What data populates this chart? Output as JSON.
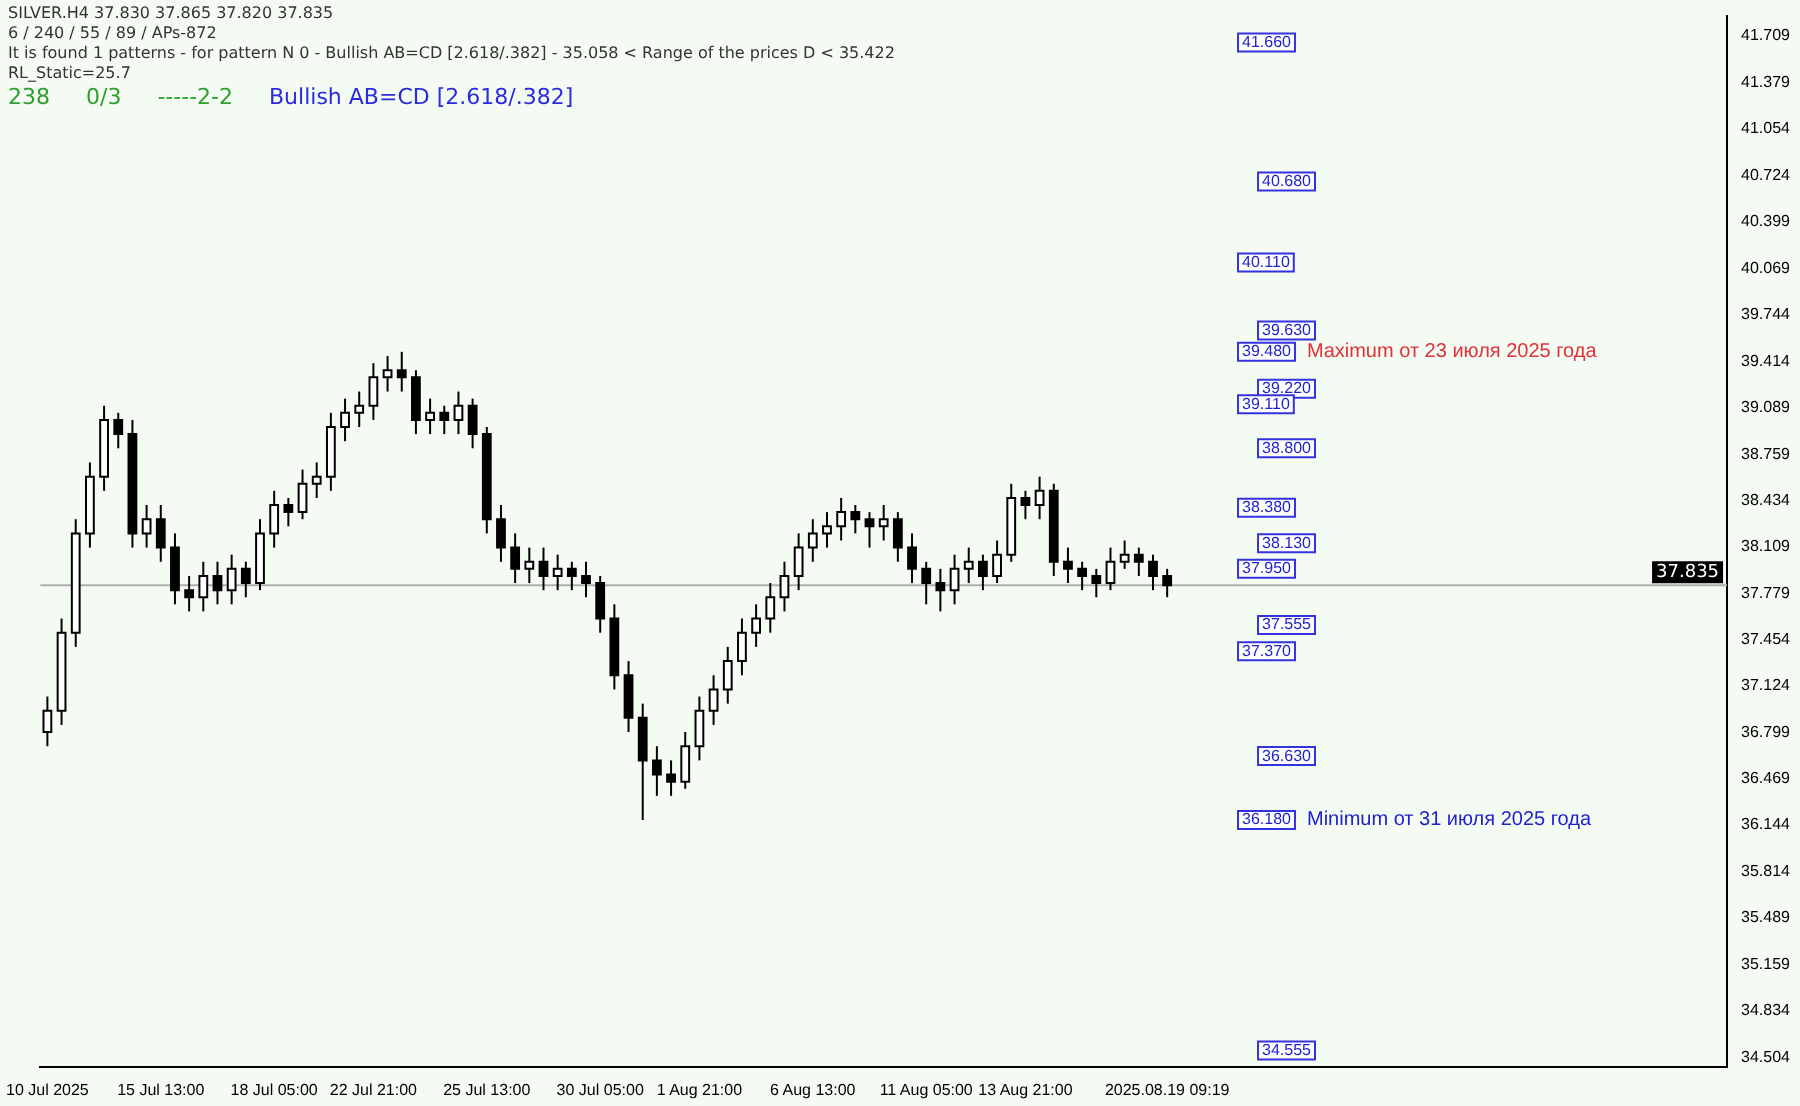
{
  "chart_data": {
    "type": "candlestick",
    "title": "SILVER.H4  37.830 37.865 37.820 37.835",
    "subtitle": "6 / 240 / 55 / 89 / APs-872",
    "annotations": [
      "It is found 1 patterns  -  for pattern N 0 - Bullish AB=CD [2.618/.382] - 35.058 < Range of the prices D < 35.422",
      "RL_Static=25.7",
      "238",
      "0/3",
      "-----2-2",
      "Bullish AB=CD [2.618/.382]",
      "Maximum от 23 июля 2025 года",
      "Minimum от 31 июля 2025 года",
      {
        "text": "41.660",
        "y": 41.66
      },
      {
        "text": "40.680",
        "y": 40.68
      },
      {
        "text": "40.110",
        "y": 40.11
      },
      {
        "text": "39.630",
        "y": 39.63
      },
      {
        "text": "39.480",
        "y": 39.48
      },
      {
        "text": "39.220",
        "y": 39.22
      },
      {
        "text": "39.110",
        "y": 39.11
      },
      {
        "text": "38.800",
        "y": 38.8
      },
      {
        "text": "38.380",
        "y": 38.38
      },
      {
        "text": "38.130",
        "y": 38.13
      },
      {
        "text": "37.950",
        "y": 37.95
      },
      {
        "text": "37.555",
        "y": 37.555
      },
      {
        "text": "37.370",
        "y": 37.37
      },
      {
        "text": "36.630",
        "y": 36.63
      },
      {
        "text": "36.180",
        "y": 36.18
      },
      {
        "text": "34.555",
        "y": 34.555
      }
    ],
    "categories": [
      "10 Jul 2025",
      null,
      null,
      null,
      null,
      null,
      null,
      null,
      "15 Jul 13:00",
      null,
      null,
      null,
      null,
      null,
      null,
      null,
      "18 Jul 05:00",
      null,
      null,
      null,
      null,
      null,
      null,
      "22 Jul 21:00",
      null,
      null,
      null,
      null,
      null,
      null,
      null,
      "25 Jul 13:00",
      null,
      null,
      null,
      null,
      null,
      null,
      null,
      "30 Jul 05:00",
      null,
      null,
      null,
      null,
      null,
      null,
      "1 Aug 21:00",
      null,
      null,
      null,
      null,
      null,
      null,
      null,
      "6 Aug 13:00",
      null,
      null,
      null,
      null,
      null,
      null,
      null,
      "11 Aug 05:00",
      null,
      null,
      null,
      null,
      null,
      null,
      "13 Aug 21:00",
      null,
      null,
      null,
      null,
      null,
      null,
      null,
      null,
      null,
      "2025.08.19 09:19",
      null,
      null,
      null,
      null,
      null,
      null,
      null,
      null,
      null,
      null,
      null,
      null,
      null,
      null,
      null,
      null,
      null,
      null,
      null,
      null,
      null,
      null,
      null,
      null,
      null,
      null,
      null,
      null,
      null,
      null,
      null,
      null,
      null,
      null,
      null,
      null,
      null,
      null,
      null
    ],
    "ohlc": [
      [
        36.8,
        37.05,
        36.7,
        36.95
      ],
      [
        36.95,
        37.6,
        36.85,
        37.5
      ],
      [
        37.5,
        38.3,
        37.4,
        38.2
      ],
      [
        38.2,
        38.7,
        38.1,
        38.6
      ],
      [
        38.6,
        39.1,
        38.5,
        39.0
      ],
      [
        39.0,
        39.05,
        38.8,
        38.9
      ],
      [
        38.9,
        39.0,
        38.1,
        38.2
      ],
      [
        38.2,
        38.4,
        38.1,
        38.3
      ],
      [
        38.3,
        38.4,
        38.0,
        38.1
      ],
      [
        38.1,
        38.2,
        37.7,
        37.8
      ],
      [
        37.8,
        37.9,
        37.65,
        37.75
      ],
      [
        37.75,
        38.0,
        37.65,
        37.9
      ],
      [
        37.9,
        38.0,
        37.7,
        37.8
      ],
      [
        37.8,
        38.05,
        37.7,
        37.95
      ],
      [
        37.95,
        38.0,
        37.75,
        37.85
      ],
      [
        37.85,
        38.3,
        37.8,
        38.2
      ],
      [
        38.2,
        38.5,
        38.1,
        38.4
      ],
      [
        38.4,
        38.45,
        38.25,
        38.35
      ],
      [
        38.35,
        38.65,
        38.3,
        38.55
      ],
      [
        38.55,
        38.7,
        38.45,
        38.6
      ],
      [
        38.6,
        39.05,
        38.5,
        38.95
      ],
      [
        38.95,
        39.15,
        38.85,
        39.05
      ],
      [
        39.05,
        39.2,
        38.95,
        39.1
      ],
      [
        39.1,
        39.4,
        39.0,
        39.3
      ],
      [
        39.3,
        39.45,
        39.2,
        39.35
      ],
      [
        39.35,
        39.48,
        39.2,
        39.3
      ],
      [
        39.3,
        39.35,
        38.9,
        39.0
      ],
      [
        39.0,
        39.15,
        38.9,
        39.05
      ],
      [
        39.05,
        39.1,
        38.9,
        39.0
      ],
      [
        39.0,
        39.2,
        38.9,
        39.1
      ],
      [
        39.1,
        39.15,
        38.8,
        38.9
      ],
      [
        38.9,
        38.95,
        38.2,
        38.3
      ],
      [
        38.3,
        38.4,
        38.0,
        38.1
      ],
      [
        38.1,
        38.2,
        37.85,
        37.95
      ],
      [
        37.95,
        38.1,
        37.85,
        38.0
      ],
      [
        38.0,
        38.1,
        37.8,
        37.9
      ],
      [
        37.9,
        38.05,
        37.8,
        37.95
      ],
      [
        37.95,
        38.0,
        37.8,
        37.9
      ],
      [
        37.9,
        38.0,
        37.75,
        37.85
      ],
      [
        37.85,
        37.9,
        37.5,
        37.6
      ],
      [
        37.6,
        37.7,
        37.1,
        37.2
      ],
      [
        37.2,
        37.3,
        36.8,
        36.9
      ],
      [
        36.9,
        37.0,
        36.18,
        36.6
      ],
      [
        36.6,
        36.7,
        36.35,
        36.5
      ],
      [
        36.5,
        36.6,
        36.35,
        36.45
      ],
      [
        36.45,
        36.8,
        36.4,
        36.7
      ],
      [
        36.7,
        37.05,
        36.6,
        36.95
      ],
      [
        36.95,
        37.2,
        36.85,
        37.1
      ],
      [
        37.1,
        37.4,
        37.0,
        37.3
      ],
      [
        37.3,
        37.6,
        37.2,
        37.5
      ],
      [
        37.5,
        37.7,
        37.4,
        37.6
      ],
      [
        37.6,
        37.85,
        37.5,
        37.75
      ],
      [
        37.75,
        38.0,
        37.65,
        37.9
      ],
      [
        37.9,
        38.2,
        37.8,
        38.1
      ],
      [
        38.1,
        38.3,
        38.0,
        38.2
      ],
      [
        38.2,
        38.35,
        38.1,
        38.25
      ],
      [
        38.25,
        38.45,
        38.15,
        38.35
      ],
      [
        38.35,
        38.4,
        38.2,
        38.3
      ],
      [
        38.3,
        38.35,
        38.1,
        38.25
      ],
      [
        38.25,
        38.4,
        38.15,
        38.3
      ],
      [
        38.3,
        38.35,
        38.0,
        38.1
      ],
      [
        38.1,
        38.2,
        37.85,
        37.95
      ],
      [
        37.95,
        38.0,
        37.7,
        37.85
      ],
      [
        37.85,
        37.95,
        37.65,
        37.8
      ],
      [
        37.8,
        38.05,
        37.7,
        37.95
      ],
      [
        37.95,
        38.1,
        37.85,
        38.0
      ],
      [
        38.0,
        38.05,
        37.8,
        37.9
      ],
      [
        37.9,
        38.15,
        37.85,
        38.05
      ],
      [
        38.05,
        38.55,
        38.0,
        38.45
      ],
      [
        38.45,
        38.5,
        38.3,
        38.4
      ],
      [
        38.4,
        38.6,
        38.3,
        38.5
      ],
      [
        38.5,
        38.55,
        37.9,
        38.0
      ],
      [
        38.0,
        38.1,
        37.85,
        37.95
      ],
      [
        37.95,
        38.0,
        37.8,
        37.9
      ],
      [
        37.9,
        37.95,
        37.75,
        37.85
      ],
      [
        37.85,
        38.1,
        37.8,
        38.0
      ],
      [
        38.0,
        38.15,
        37.95,
        38.05
      ],
      [
        38.05,
        38.1,
        37.9,
        38.0
      ],
      [
        38.0,
        38.05,
        37.8,
        37.9
      ],
      [
        37.9,
        37.95,
        37.75,
        37.835
      ],
      null,
      null,
      null,
      null,
      null,
      null,
      null,
      null,
      null,
      null,
      null,
      null,
      null,
      null,
      null,
      null,
      null,
      null,
      null,
      null,
      null,
      null,
      null,
      null,
      null,
      null,
      null,
      null,
      null,
      null,
      null,
      null,
      null,
      null,
      null,
      null,
      null,
      null,
      null
    ],
    "ylim": [
      34.44,
      41.85
    ],
    "yticks": [
      34.504,
      34.834,
      35.159,
      35.489,
      35.814,
      36.144,
      36.469,
      36.799,
      37.124,
      37.454,
      37.779,
      38.109,
      38.434,
      38.759,
      39.089,
      39.414,
      39.744,
      40.069,
      40.399,
      40.724,
      41.054,
      41.379,
      41.709
    ],
    "ref_lines": [
      {
        "axis": "y",
        "value": 37.835,
        "label": "37.835",
        "color": "#b0b0b0"
      }
    ],
    "grid": false
  }
}
